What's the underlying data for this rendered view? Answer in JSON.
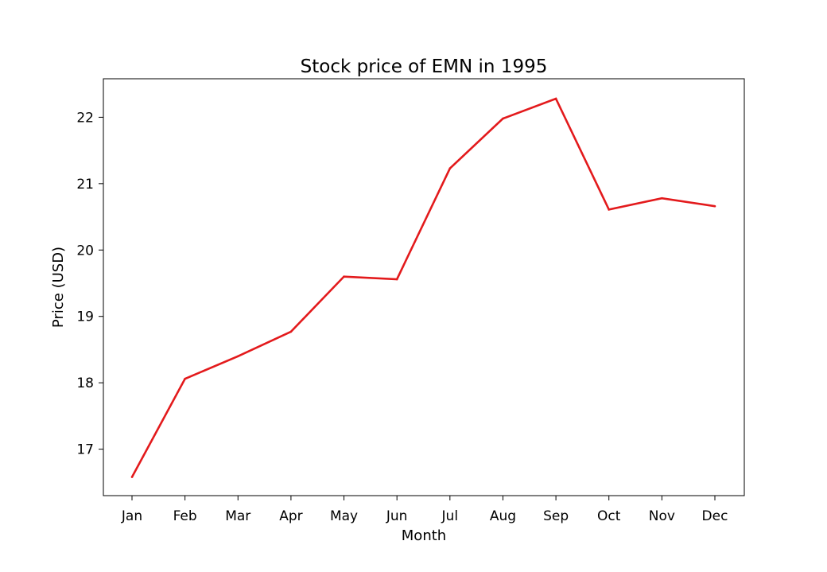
{
  "chart_data": {
    "type": "line",
    "title": "Stock price of EMN in 1995",
    "xlabel": "Month",
    "ylabel": "Price (USD)",
    "categories": [
      "Jan",
      "Feb",
      "Mar",
      "Apr",
      "May",
      "Jun",
      "Jul",
      "Aug",
      "Sep",
      "Oct",
      "Nov",
      "Dec"
    ],
    "series": [
      {
        "values": [
          16.58,
          18.06,
          18.4,
          18.77,
          19.6,
          19.56,
          21.23,
          21.98,
          22.28,
          20.61,
          20.78,
          20.66
        ],
        "color": "#e31a1c"
      }
    ],
    "yticks": [
      17,
      18,
      19,
      20,
      21,
      22
    ],
    "ylim": [
      16.3,
      22.58
    ],
    "grid": false,
    "legend": false
  }
}
